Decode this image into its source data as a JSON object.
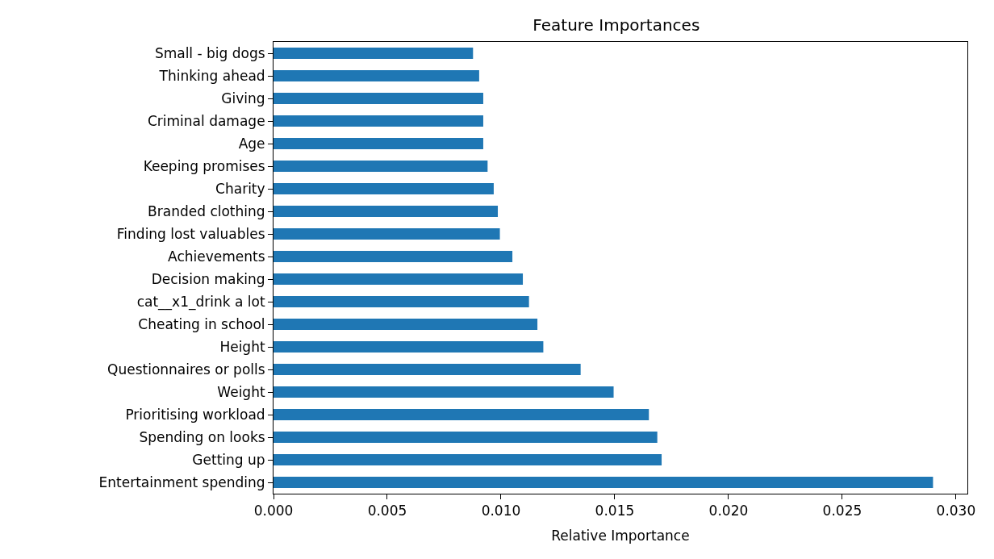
{
  "chart_data": {
    "type": "bar",
    "orientation": "horizontal",
    "title": "Feature Importances",
    "xlabel": "Relative Importance",
    "categories": [
      "Small - big dogs",
      "Thinking ahead",
      "Giving",
      "Criminal damage",
      "Age",
      "Keeping promises",
      "Charity",
      "Branded clothing",
      "Finding lost valuables",
      "Achievements",
      "Decision making",
      "cat__x1_drink a lot",
      "Cheating in school",
      "Height",
      "Questionnaires or polls",
      "Weight",
      "Prioritising workload",
      "Spending on looks",
      "Getting up",
      "Entertainment spending"
    ],
    "values": [
      0.00877,
      0.00904,
      0.00922,
      0.00922,
      0.00922,
      0.00941,
      0.00968,
      0.00986,
      0.00995,
      0.0105,
      0.01096,
      0.01123,
      0.0116,
      0.01186,
      0.0135,
      0.01495,
      0.0165,
      0.01687,
      0.01706,
      0.02899
    ],
    "color": "#1f77b4",
    "xlim": [
      0,
      0.0305
    ],
    "xticks": [
      {
        "value": 0,
        "label": "0.000"
      },
      {
        "value": 0.005,
        "label": "0.005"
      },
      {
        "value": 0.01,
        "label": "0.010"
      },
      {
        "value": 0.015,
        "label": "0.015"
      },
      {
        "value": 0.02,
        "label": "0.020"
      },
      {
        "value": 0.025,
        "label": "0.025"
      },
      {
        "value": 0.03,
        "label": "0.030"
      }
    ],
    "legend": false
  }
}
